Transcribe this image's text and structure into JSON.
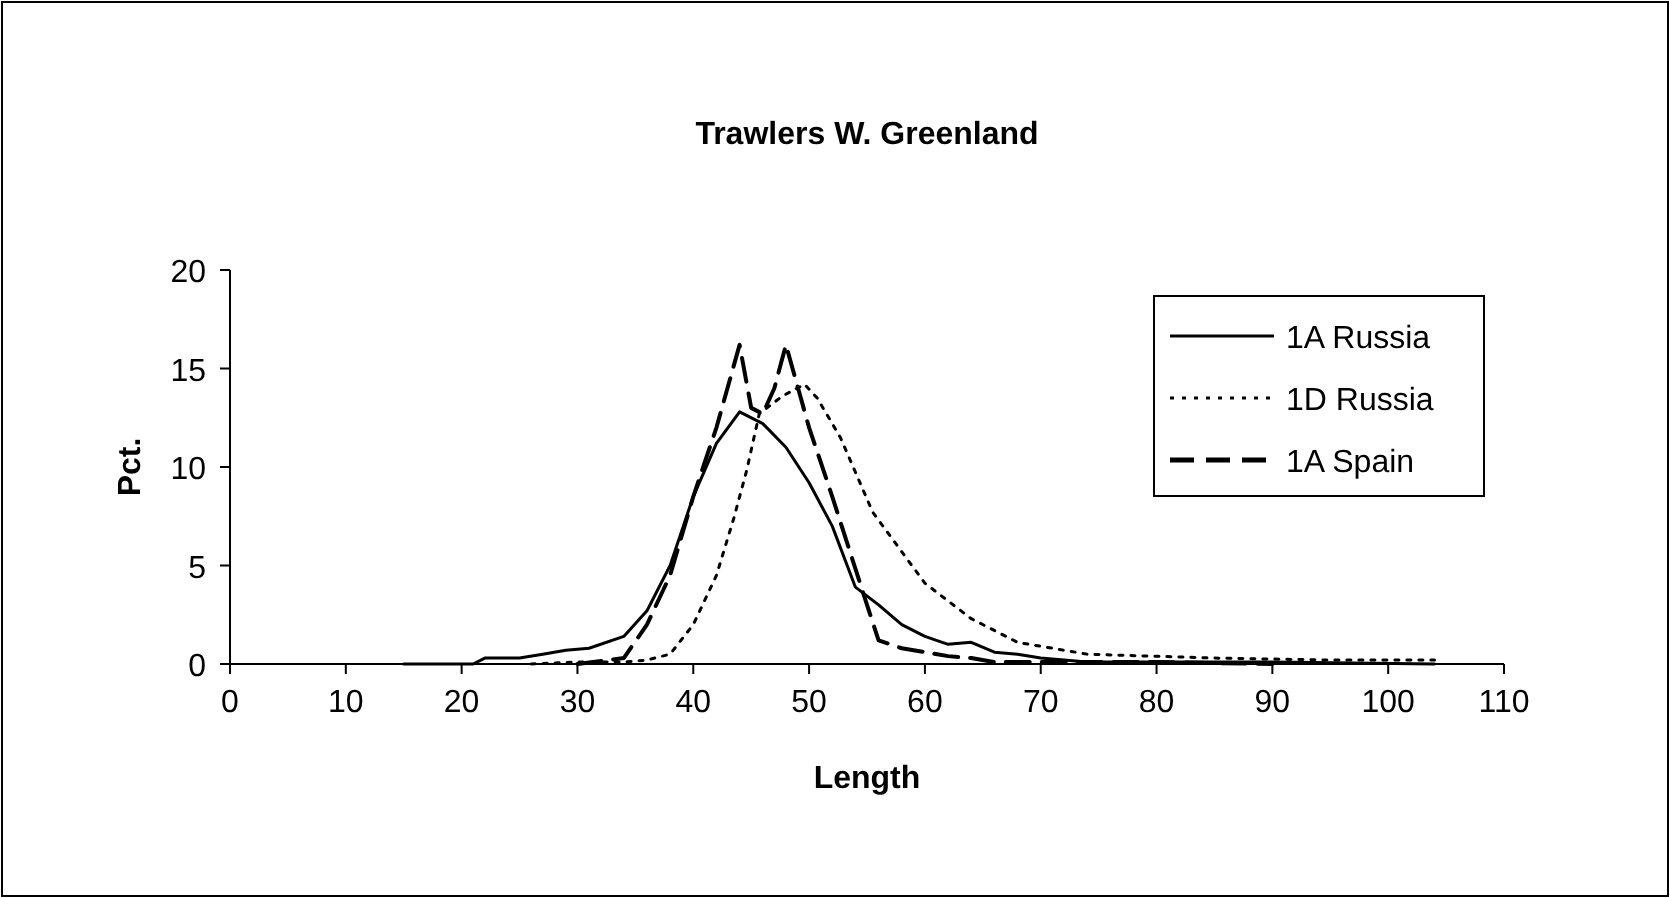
{
  "chart_data": {
    "type": "line",
    "title": "Trawlers W. Greenland",
    "xlabel": "Length",
    "ylabel": "Pct.",
    "xlim": [
      0,
      110
    ],
    "xticks": [
      0,
      10,
      20,
      30,
      40,
      50,
      60,
      70,
      80,
      90,
      100,
      110
    ],
    "ylim": [
      0,
      20
    ],
    "yticks": [
      0,
      5,
      10,
      15,
      20
    ],
    "grid": false,
    "legend": "top right",
    "marker": "none",
    "series": [
      {
        "name": "1A Russia",
        "color": "#000000",
        "line_style": "solid",
        "x": [
          15,
          21,
          22,
          25,
          27,
          29,
          31,
          34,
          36,
          38,
          40,
          42,
          44,
          46,
          48,
          50,
          52,
          54,
          56,
          58,
          60,
          62,
          64,
          66,
          68,
          70,
          74,
          80,
          90,
          104
        ],
        "values": [
          0,
          0,
          0.3,
          0.3,
          0.5,
          0.7,
          0.8,
          1.4,
          2.7,
          5,
          8.5,
          11.2,
          12.8,
          12.2,
          11,
          9.2,
          7,
          3.9,
          3,
          2,
          1.4,
          1,
          1.1,
          0.6,
          0.5,
          0.3,
          0.1,
          0.1,
          0.1,
          0
        ]
      },
      {
        "name": "1D Russia",
        "color": "#000000",
        "line_style": "dotted",
        "x": [
          26,
          30,
          34,
          36,
          38,
          40,
          42,
          43.5,
          44.6,
          45.7,
          47.7,
          49.6,
          50.7,
          52.7,
          55.5,
          60,
          64,
          68,
          74,
          85,
          95,
          104
        ],
        "values": [
          0,
          0.1,
          0.1,
          0.2,
          0.5,
          2,
          4.5,
          7.4,
          9.8,
          12.7,
          13.6,
          14.2,
          13.5,
          11.5,
          7.7,
          4.1,
          2.3,
          1.1,
          0.5,
          0.3,
          0.2,
          0.2
        ]
      },
      {
        "name": "1A Spain",
        "color": "#000000",
        "line_style": "dashed",
        "x": [
          30,
          34,
          36,
          38,
          40,
          42,
          44,
          45,
          46,
          47,
          48,
          50,
          52,
          55,
          56,
          58,
          60,
          62,
          64,
          66,
          70,
          80,
          90
        ],
        "values": [
          0,
          0.3,
          2,
          4.5,
          8.5,
          12,
          16.2,
          13,
          12.7,
          14,
          16.2,
          12,
          8.5,
          3,
          1.2,
          0.8,
          0.6,
          0.4,
          0.3,
          0.1,
          0.1,
          0.1,
          0
        ]
      }
    ]
  }
}
